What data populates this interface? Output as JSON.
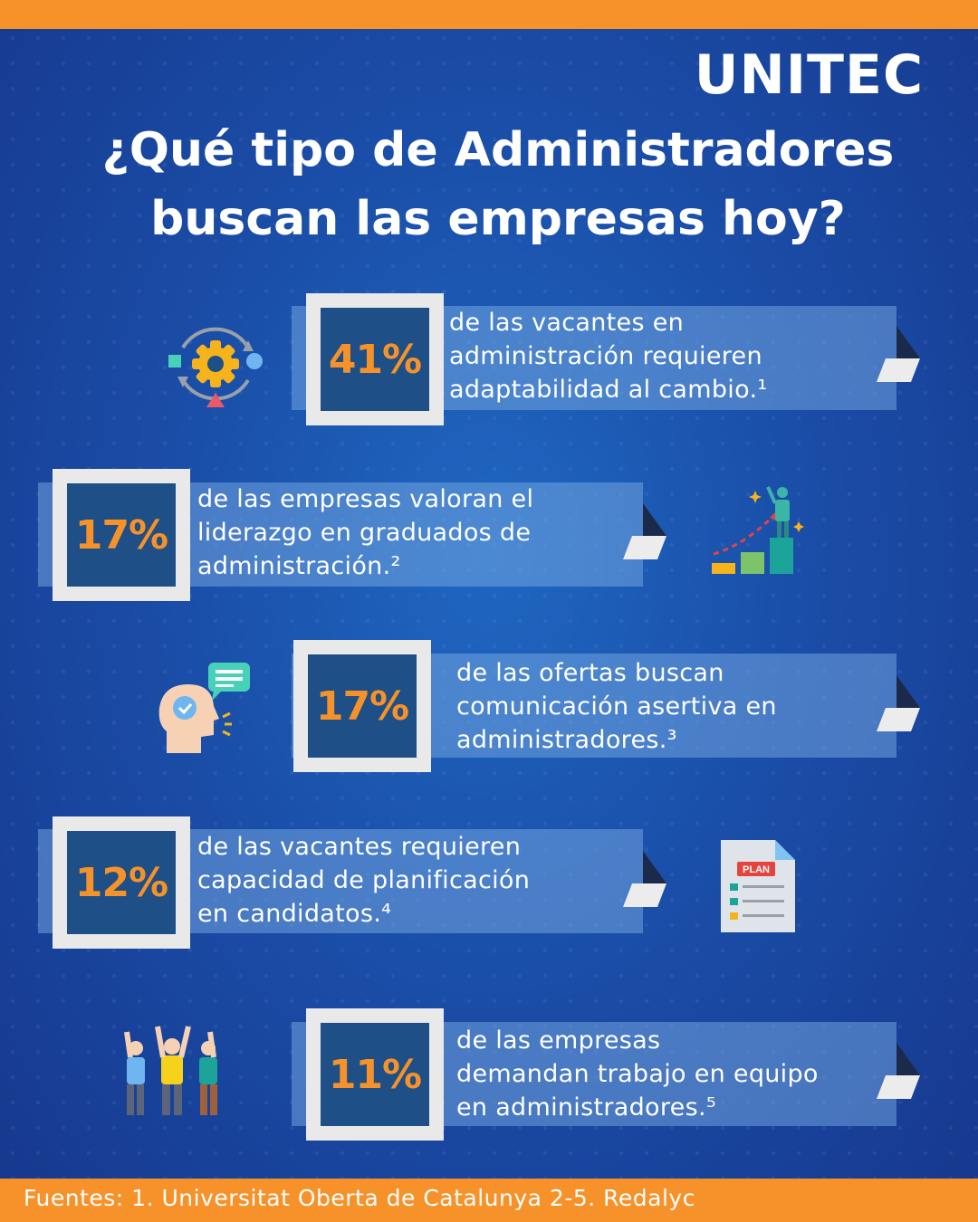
{
  "brand": "UNITEC",
  "title": {
    "line1": "¿Qué tipo de Administradores",
    "line2": "buscan las empresas hoy?"
  },
  "colors": {
    "accent": "#f7922a",
    "background": "#1a4ea8",
    "tile": "#1e4f86"
  },
  "stats": [
    {
      "percent": "41%",
      "text": [
        "de las vacantes en",
        "administración requieren",
        "adaptabilidad al cambio.¹"
      ],
      "icon": "gear-cycle-icon"
    },
    {
      "percent": "17%",
      "text": [
        "de las empresas valoran el",
        "liderazgo en graduados de",
        "administración.²"
      ],
      "icon": "leader-growth-icon"
    },
    {
      "percent": "17%",
      "text": [
        "de las ofertas buscan",
        "comunicación asertiva en",
        "administradores.³"
      ],
      "icon": "head-speech-icon"
    },
    {
      "percent": "12%",
      "text": [
        "de las vacantes requieren",
        "capacidad de planificación",
        "en candidatos.⁴"
      ],
      "icon": "plan-document-icon"
    },
    {
      "percent": "11%",
      "text": [
        "de las empresas",
        "demandan trabajo en equipo",
        "en administradores.⁵"
      ],
      "icon": "teamwork-icon"
    }
  ],
  "footer": {
    "sources": "Fuentes: 1. Universitat Oberta de Catalunya 2-5. Redalyc"
  }
}
